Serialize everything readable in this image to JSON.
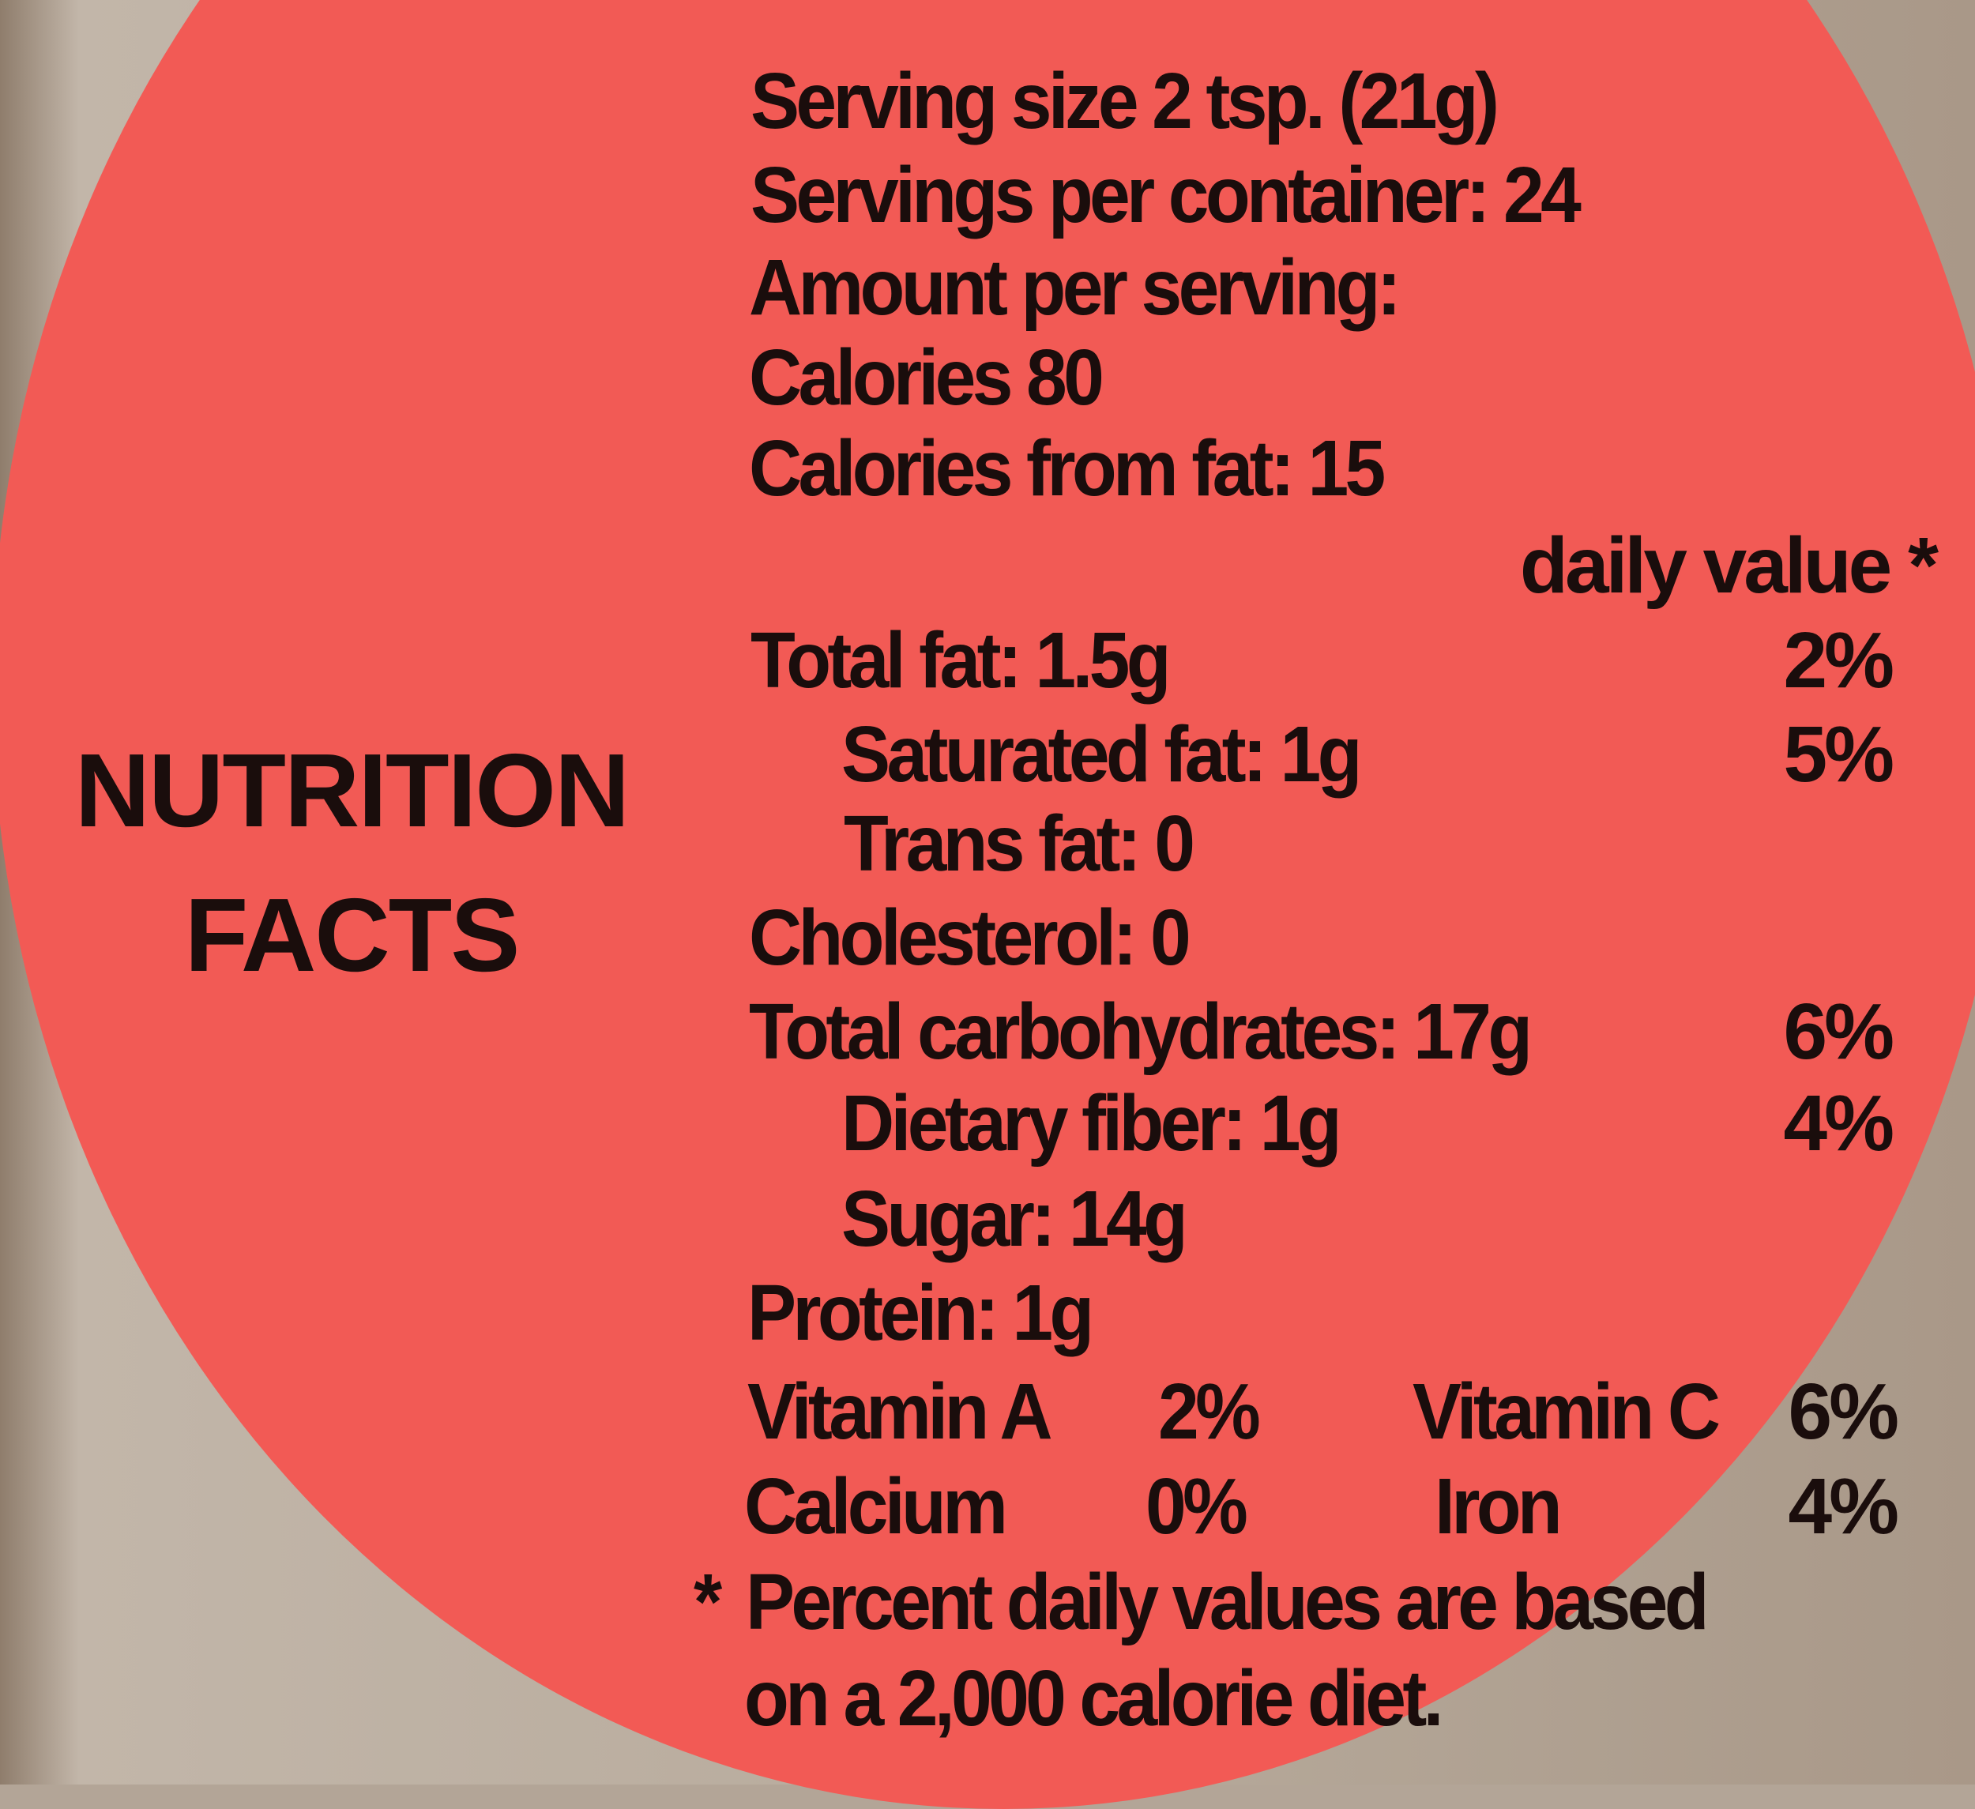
{
  "label": {
    "title_line1": "NUTRITION",
    "title_line2": "FACTS",
    "serving_size": "Serving size 2 tsp. (21g)",
    "servings_per_container": "Servings per container: 24",
    "amount_per_serving": "Amount per serving:",
    "calories": "Calories 80",
    "calories_from_fat": "Calories from fat: 15",
    "daily_value_header": "daily value *",
    "nutrients": [
      {
        "label": "Total fat:  1.5g",
        "dv": "2%"
      },
      {
        "label": "Saturated fat: 1g",
        "dv": "5%"
      },
      {
        "label": "Trans fat:  0",
        "dv": ""
      },
      {
        "label": "Cholesterol:  0",
        "dv": ""
      },
      {
        "label": "Total carbohydrates: 17g",
        "dv": "6%"
      },
      {
        "label": "Dietary fiber: 1g",
        "dv": "4%"
      },
      {
        "label": "Sugar: 14g",
        "dv": ""
      },
      {
        "label": "Protein: 1g",
        "dv": ""
      }
    ],
    "vitamins": [
      {
        "label": "Vitamin A",
        "value": "2%"
      },
      {
        "label": "Vitamin C",
        "value": "6%"
      },
      {
        "label": "Calcium",
        "value": "0%"
      },
      {
        "label": "Iron",
        "value": "4%"
      }
    ],
    "footnote_star": "*",
    "footnote_line1": "Percent daily values are based",
    "footnote_line2": "on a 2,000 calorie diet.",
    "colors": {
      "label_red": "#f25a55",
      "text": "#1a0d0c",
      "background": "#b3a597"
    }
  }
}
